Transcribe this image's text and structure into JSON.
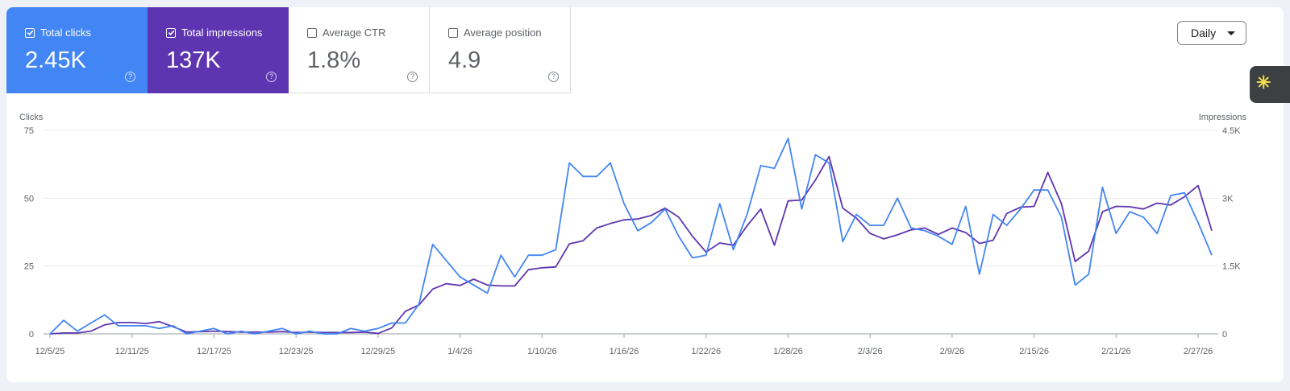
{
  "metrics": {
    "clicks": {
      "label": "Total clicks",
      "value": "2.45K",
      "checked": true,
      "color": "#4285f4"
    },
    "impressions": {
      "label": "Total impressions",
      "value": "137K",
      "checked": true,
      "color": "#5e35b1"
    },
    "ctr": {
      "label": "Average CTR",
      "value": "1.8%",
      "checked": false
    },
    "position": {
      "label": "Average position",
      "value": "4.9",
      "checked": false
    }
  },
  "granularity": {
    "selected": "Daily"
  },
  "chart_data": {
    "type": "line",
    "left_axis": {
      "label": "Clicks",
      "ticks": [
        "0",
        "25",
        "50",
        "75"
      ],
      "range": [
        0,
        75
      ]
    },
    "right_axis": {
      "label": "Impressions",
      "ticks": [
        "0",
        "1.5K",
        "3K",
        "4.5K"
      ],
      "range": [
        0,
        4500
      ]
    },
    "x_tick_labels": [
      "12/5/25",
      "12/11/25",
      "12/17/25",
      "12/23/25",
      "12/29/25",
      "1/4/26",
      "1/10/26",
      "1/16/26",
      "1/22/26",
      "1/28/26",
      "2/3/26",
      "2/9/26",
      "2/15/26",
      "2/21/26",
      "2/27/26"
    ],
    "x_tick_every": 6,
    "grid": true,
    "series": [
      {
        "name": "Clicks",
        "axis": "left",
        "color": "#4285f4",
        "values": [
          0,
          5,
          1,
          4,
          7,
          3,
          3,
          3,
          2,
          3,
          0,
          1,
          2,
          0,
          1,
          0,
          1,
          2,
          0,
          1,
          0,
          0,
          2,
          1,
          2,
          4,
          4,
          11,
          33,
          27,
          21,
          18,
          15,
          29,
          21,
          29,
          29,
          31,
          63,
          58,
          58,
          63,
          48,
          38,
          41,
          46,
          36,
          28,
          29,
          48,
          31,
          44,
          62,
          61,
          72,
          46,
          66,
          63,
          34,
          44,
          40,
          40,
          50,
          39,
          38,
          36,
          33,
          47,
          22,
          44,
          40,
          46,
          53,
          53,
          43,
          18,
          22,
          54,
          37,
          45,
          43,
          37,
          51,
          52,
          41,
          29
        ]
      },
      {
        "name": "Impressions",
        "axis": "right",
        "color": "#5e35b1",
        "values": [
          0,
          20,
          20,
          60,
          200,
          250,
          250,
          230,
          270,
          160,
          40,
          50,
          60,
          50,
          40,
          40,
          40,
          50,
          30,
          40,
          30,
          30,
          30,
          40,
          10,
          130,
          500,
          640,
          990,
          1110,
          1070,
          1210,
          1080,
          1060,
          1060,
          1420,
          1460,
          1480,
          1990,
          2060,
          2340,
          2440,
          2520,
          2540,
          2620,
          2780,
          2580,
          2160,
          1810,
          2010,
          1960,
          2390,
          2760,
          1960,
          2940,
          2960,
          3400,
          3920,
          2780,
          2560,
          2220,
          2100,
          2190,
          2300,
          2340,
          2200,
          2340,
          2240,
          2000,
          2070,
          2660,
          2800,
          2820,
          3570,
          2880,
          1600,
          1830,
          2700,
          2820,
          2810,
          2760,
          2890,
          2850,
          3030,
          3280,
          2280
        ]
      }
    ]
  }
}
